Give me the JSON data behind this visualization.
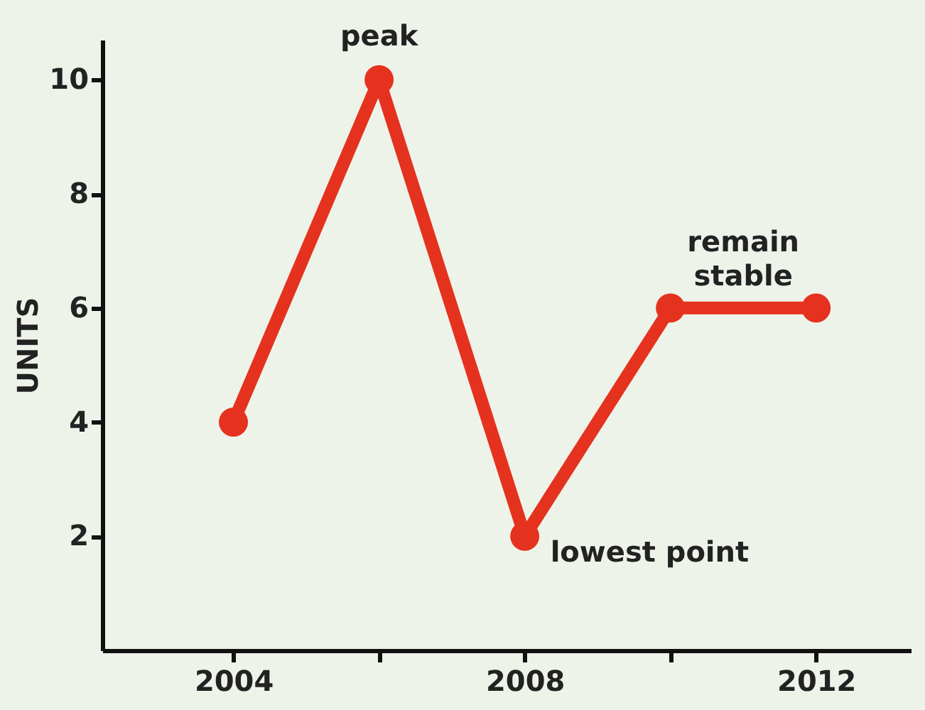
{
  "chart_data": {
    "type": "line",
    "ylabel": "UNITS",
    "x": [
      2004,
      2006,
      2008,
      2010,
      2012
    ],
    "series": [
      {
        "color": "#e5321f",
        "values": [
          4,
          10,
          2,
          6,
          6
        ]
      }
    ],
    "xlim": [
      2002.2,
      2013.3
    ],
    "xticks": [
      2004,
      {
        "value": 2006,
        "label": null
      },
      2008,
      {
        "value": 2010,
        "label": null
      },
      2012
    ],
    "ylim": [
      0,
      10.7
    ],
    "yticks": [
      2,
      4,
      6,
      8,
      10
    ],
    "annotations": [
      {
        "text": "peak",
        "x": 2006,
        "y": 10
      },
      {
        "text": "lowest point",
        "x": 2008,
        "y": 2
      },
      {
        "text": "remain stable",
        "x": 2011,
        "y": 6
      }
    ],
    "marker": "circle",
    "line_style": "solid",
    "grid": false
  }
}
